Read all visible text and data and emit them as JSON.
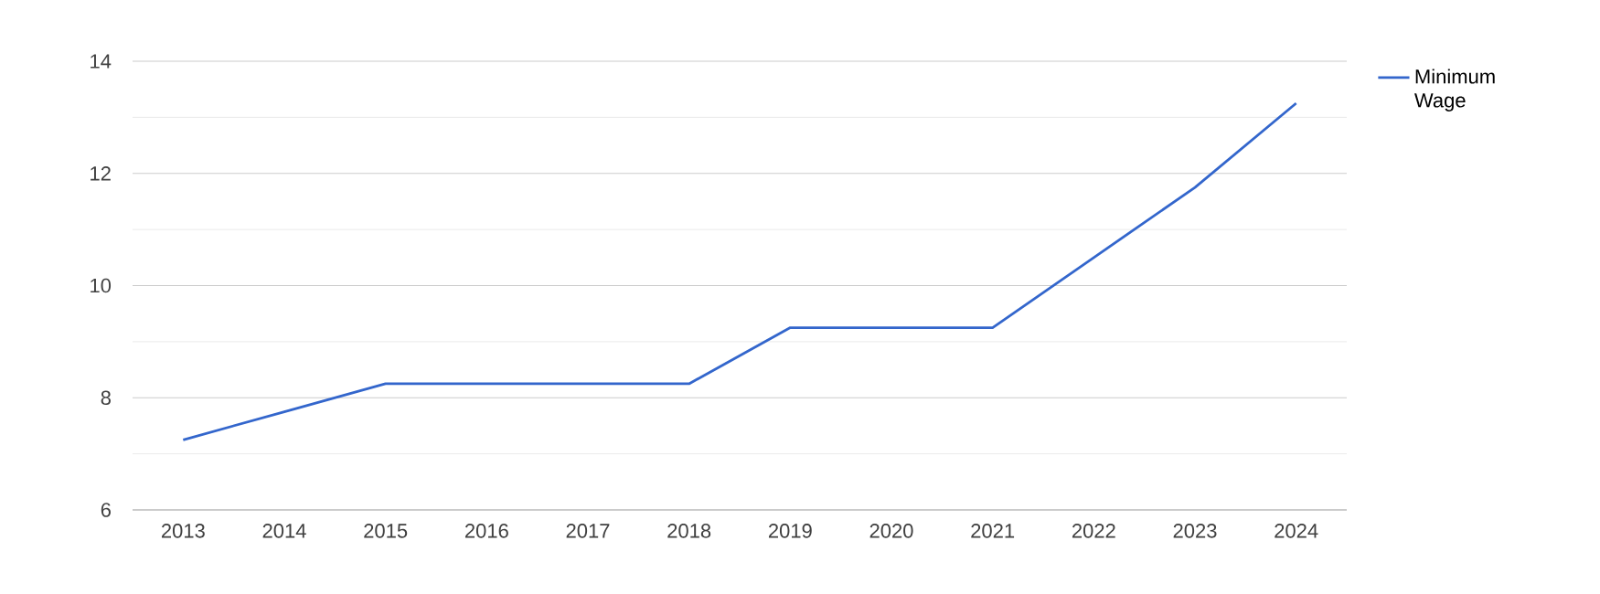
{
  "chart_data": {
    "type": "line",
    "categories": [
      "2013",
      "2014",
      "2015",
      "2016",
      "2017",
      "2018",
      "2019",
      "2020",
      "2021",
      "2022",
      "2023",
      "2024"
    ],
    "series": [
      {
        "name": "Minimum Wage",
        "color": "#3366cc",
        "values": [
          7.25,
          7.75,
          8.25,
          8.25,
          8.25,
          8.25,
          9.25,
          9.25,
          9.25,
          10.5,
          11.75,
          13.25
        ]
      }
    ],
    "ylim": [
      6,
      14
    ],
    "yticks": [
      6,
      {
        "value": 7,
        "label": null
      },
      8,
      {
        "value": 9,
        "label": null
      },
      10,
      {
        "value": 11,
        "label": null
      },
      12,
      {
        "value": 13,
        "label": null
      },
      14
    ],
    "grid": "y",
    "legend": "top right",
    "marker": "none",
    "line_style": "solid"
  }
}
